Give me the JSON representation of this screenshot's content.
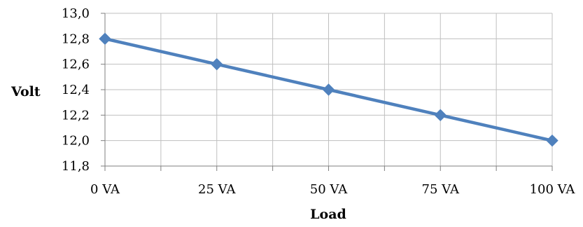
{
  "chart_data": {
    "type": "line",
    "title": "",
    "xlabel": "Load",
    "ylabel": "Volt",
    "categories": [
      "0 VA",
      "25 VA",
      "50 VA",
      "75 VA",
      "100 VA"
    ],
    "x_values": [
      0,
      25,
      50,
      75,
      100
    ],
    "xlim": [
      0,
      100
    ],
    "ylim": [
      11.8,
      13.0
    ],
    "y_ticks": [
      "11,8",
      "12,0",
      "12,2",
      "12,4",
      "12,6",
      "12,8",
      "13,0"
    ],
    "x_minor_ticks": [
      12.5,
      37.5,
      62.5,
      87.5
    ],
    "grid": true,
    "legend": "none",
    "series": [
      {
        "values": [
          12.8,
          12.6,
          12.4,
          12.2,
          12.0
        ],
        "color": "#4F81BD",
        "marker": "diamond"
      }
    ],
    "colors": {
      "series": "#4F81BD",
      "grid": "#BFBFBF",
      "axis": "#7F7F7F"
    }
  }
}
